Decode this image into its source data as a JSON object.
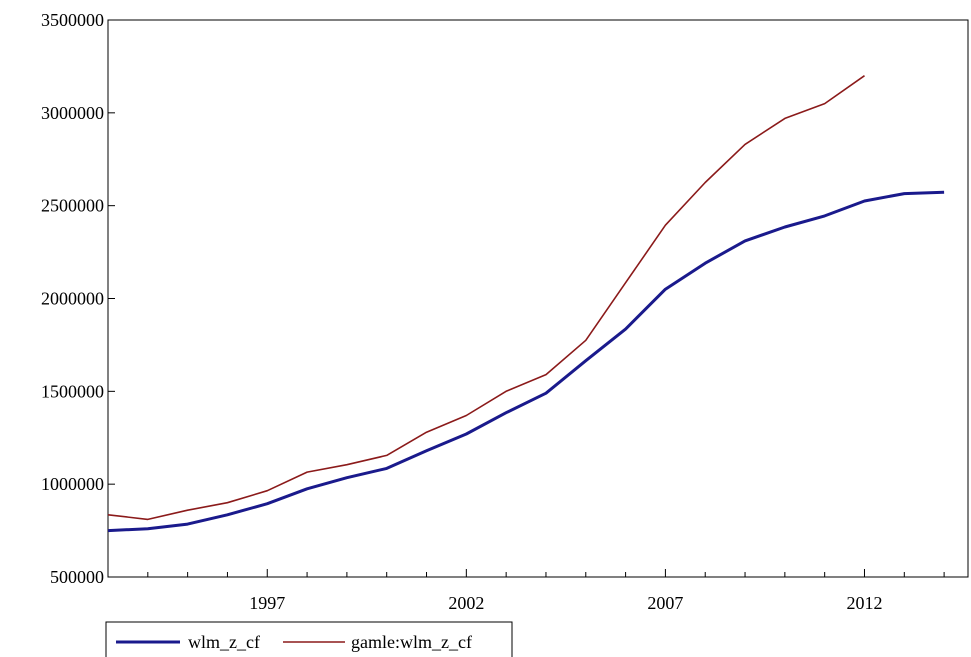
{
  "chart_data": {
    "type": "line",
    "title": "",
    "xlabel": "",
    "ylabel": "",
    "xlim": [
      1993,
      2014.6
    ],
    "ylim": [
      500000,
      3500000
    ],
    "y_ticks": [
      "500000",
      "1000000",
      "1500000",
      "2000000",
      "2500000",
      "3000000",
      "3500000"
    ],
    "x_tick_labels": [
      "1997",
      "2002",
      "2007",
      "2012"
    ],
    "grid": false,
    "legend_position": "bottom-left",
    "series": [
      {
        "name": "wlm_z_cf",
        "color": "#1a1a8c",
        "x": [
          1993,
          1994,
          1995,
          1996,
          1997,
          1998,
          1999,
          2000,
          2001,
          2002,
          2003,
          2004,
          2005,
          2006,
          2007,
          2008,
          2009,
          2010,
          2011,
          2012,
          2013,
          2014
        ],
        "values": [
          750000,
          760000,
          785000,
          835000,
          895000,
          975000,
          1035000,
          1085000,
          1180000,
          1270000,
          1385000,
          1490000,
          1665000,
          1835000,
          2050000,
          2190000,
          2310000,
          2385000,
          2445000,
          2525000,
          2565000,
          2572000
        ]
      },
      {
        "name": "gamle:wlm_z_cf",
        "color": "#8b1a1a",
        "x": [
          1993,
          1994,
          1995,
          1996,
          1997,
          1998,
          1999,
          2000,
          2001,
          2002,
          2003,
          2004,
          2005,
          2006,
          2007,
          2008,
          2009,
          2010,
          2011,
          2012
        ],
        "values": [
          835000,
          810000,
          860000,
          900000,
          965000,
          1065000,
          1105000,
          1155000,
          1280000,
          1370000,
          1500000,
          1590000,
          1775000,
          2085000,
          2395000,
          2625000,
          2830000,
          2970000,
          3050000,
          3200000
        ]
      }
    ]
  }
}
